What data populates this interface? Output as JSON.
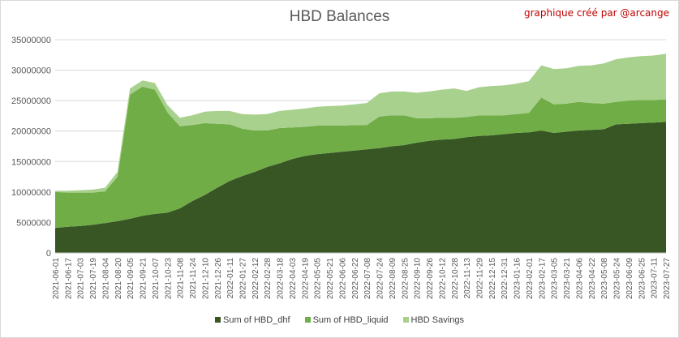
{
  "chart_data": {
    "type": "area",
    "stacked": true,
    "title": "HBD Balances",
    "credit": "graphique créé par @arcange",
    "xlabel": "",
    "ylabel": "",
    "ylim": [
      0,
      35000000
    ],
    "yticks": [
      0,
      5000000,
      10000000,
      15000000,
      20000000,
      25000000,
      30000000,
      35000000
    ],
    "ytick_labels": [
      "0",
      "5000000",
      "10000000",
      "15000000",
      "20000000",
      "25000000",
      "30000000",
      "35000000"
    ],
    "grid": true,
    "legend_position": "bottom",
    "x": [
      "2021-06-01",
      "2021-06-17",
      "2021-07-03",
      "2021-07-19",
      "2021-08-04",
      "2021-08-20",
      "2021-09-05",
      "2021-09-21",
      "2021-10-07",
      "2021-10-23",
      "2021-11-08",
      "2021-11-24",
      "2021-12-10",
      "2021-12-26",
      "2022-01-11",
      "2022-01-27",
      "2022-02-12",
      "2022-02-28",
      "2022-03-18",
      "2022-04-03",
      "2022-04-19",
      "2022-05-05",
      "2022-05-21",
      "2022-06-06",
      "2022-06-22",
      "2022-07-08",
      "2022-07-24",
      "2022-08-09",
      "2022-08-25",
      "2022-09-10",
      "2022-09-26",
      "2022-10-12",
      "2022-10-28",
      "2022-11-13",
      "2022-11-29",
      "2022-12-15",
      "2022-12-31",
      "2023-01-16",
      "2023-02-01",
      "2023-02-17",
      "2023-03-05",
      "2023-03-21",
      "2023-04-06",
      "2023-04-22",
      "2023-05-08",
      "2023-05-24",
      "2023-06-09",
      "2023-06-25",
      "2023-07-11",
      "2023-07-27"
    ],
    "x_tick_labels": [
      "2021-06-01",
      "2021-06-17",
      "2021-07-03",
      "2021-07-19",
      "2021-08-04",
      "2021-08-20",
      "2021-09-05",
      "2021-09-21",
      "2021-10-07",
      "2021-10-23",
      "2021-11-08",
      "2021-11-24",
      "2021-12-10",
      "2021-12-26",
      "2022-01-11",
      "2022-01-27",
      "2022-02-12",
      "2022-02-28",
      "2022-03-18",
      "2022-04-03",
      "2022-04-19",
      "2022-05-05",
      "2022-05-21",
      "2022-06-06",
      "2022-06-22",
      "2022-07-08",
      "2022-07-24",
      "2022-08-09",
      "2022-08-25",
      "2022-09-10",
      "2022-09-26",
      "2022-10-12",
      "2022-10-28",
      "2022-11-13",
      "2022-11-29",
      "2022-12-15",
      "2022-12-31",
      "2023-01-16",
      "2023-02-01",
      "2023-02-17",
      "2023-03-05",
      "2023-03-21",
      "2023-04-06",
      "2023-04-22",
      "2023-05-08",
      "2023-05-24",
      "2023-06-09",
      "2023-06-25",
      "2023-07-11",
      "2023-07-27"
    ],
    "series": [
      {
        "name": "Sum of HBD_dhf",
        "color": "#375623",
        "values": [
          4100000,
          4300000,
          4400000,
          4600000,
          4900000,
          5200000,
          5600000,
          6100000,
          6400000,
          6600000,
          7300000,
          8500000,
          9500000,
          10700000,
          11800000,
          12600000,
          13300000,
          14100000,
          14700000,
          15400000,
          15900000,
          16200000,
          16400000,
          16600000,
          16800000,
          17000000,
          17200000,
          17500000,
          17700000,
          18100000,
          18400000,
          18600000,
          18700000,
          19000000,
          19200000,
          19300000,
          19500000,
          19700000,
          19800000,
          20100000,
          19700000,
          19900000,
          20100000,
          20200000,
          20300000,
          21100000,
          21200000,
          21300000,
          21400000,
          21500000
        ]
      },
      {
        "name": "Sum of HBD_liquid",
        "color": "#70ad47",
        "values": [
          5900000,
          5600000,
          5500000,
          5300000,
          5200000,
          7300000,
          20400000,
          21200000,
          20400000,
          16500000,
          13500000,
          12500000,
          11800000,
          10500000,
          9300000,
          7800000,
          6800000,
          6000000,
          5800000,
          5200000,
          4800000,
          4700000,
          4500000,
          4300000,
          4200000,
          4000000,
          5200000,
          5100000,
          4900000,
          4000000,
          3700000,
          3600000,
          3500000,
          3300000,
          3400000,
          3300000,
          3100000,
          3100000,
          3200000,
          5400000,
          4700000,
          4600000,
          4700000,
          4400000,
          4200000,
          3700000,
          3800000,
          3800000,
          3700000,
          3700000
        ]
      },
      {
        "name": "HBD Savings",
        "color": "#a9d18e",
        "values": [
          200000,
          300000,
          400000,
          500000,
          600000,
          800000,
          1000000,
          1000000,
          1100000,
          1200000,
          1400000,
          1600000,
          1900000,
          2100000,
          2200000,
          2400000,
          2600000,
          2700000,
          2800000,
          2900000,
          3000000,
          3100000,
          3200000,
          3300000,
          3400000,
          3600000,
          3800000,
          3900000,
          3900000,
          4200000,
          4400000,
          4600000,
          4800000,
          4300000,
          4600000,
          4800000,
          4900000,
          5000000,
          5200000,
          5300000,
          5800000,
          5800000,
          5900000,
          6200000,
          6600000,
          7000000,
          7100000,
          7200000,
          7300000,
          7500000
        ]
      }
    ]
  }
}
